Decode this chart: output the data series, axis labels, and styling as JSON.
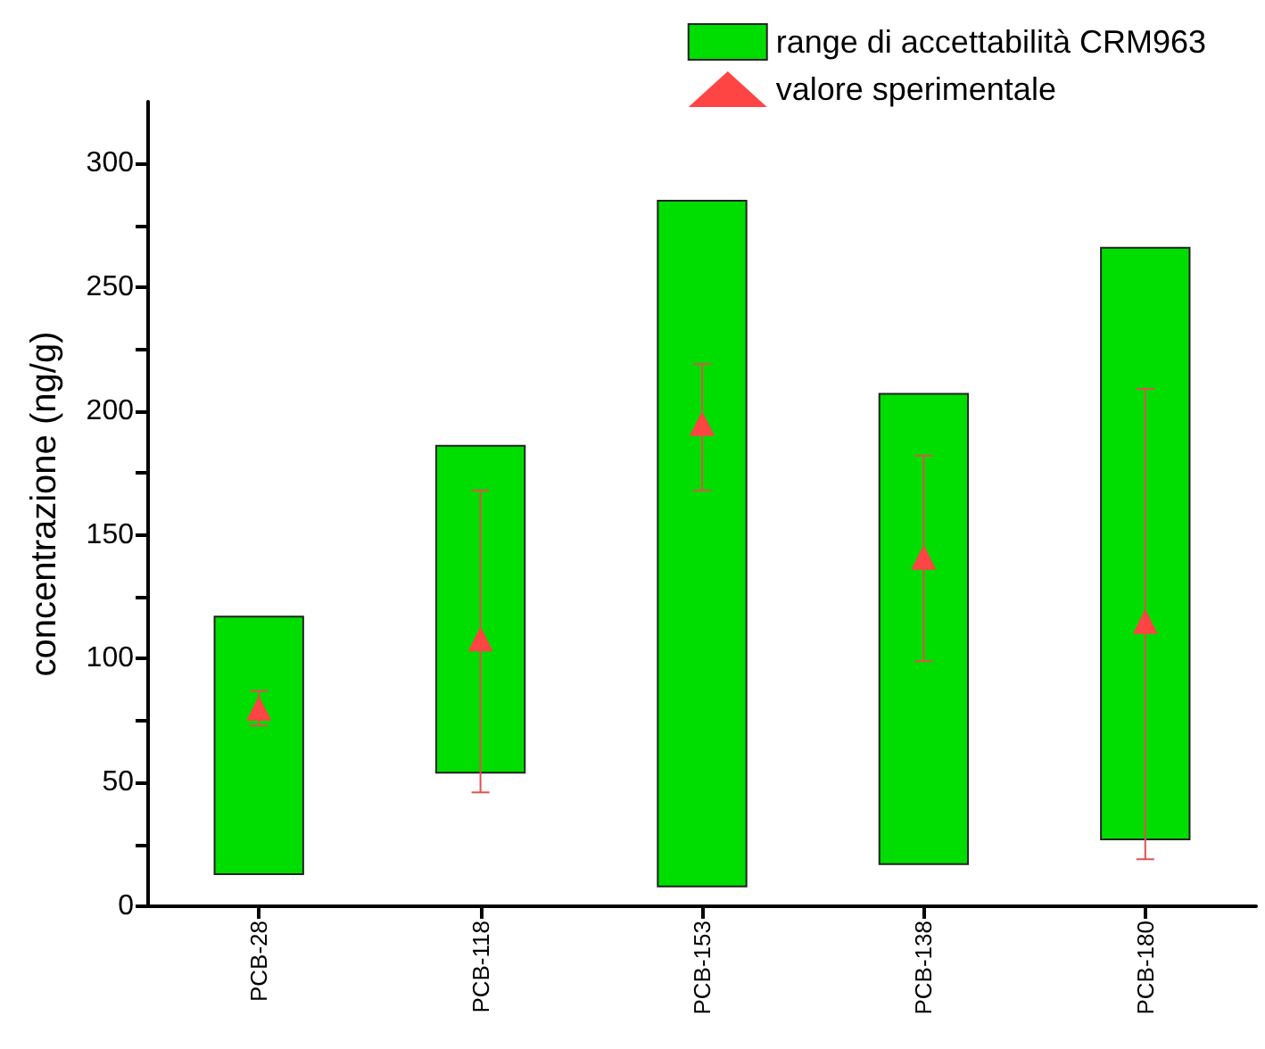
{
  "chart_data": {
    "type": "bar",
    "ylabel": "concentrazione (ng/g)",
    "categories": [
      "PCB-28",
      "PCB-118",
      "PCB-153",
      "PCB-138",
      "PCB-180"
    ],
    "series": [
      {
        "name": "range di accettabilità CRM963",
        "color": "#00dd00",
        "base": [
          13,
          54,
          8,
          17,
          27
        ],
        "values": [
          104,
          132,
          277,
          190,
          239
        ]
      },
      {
        "name": "valore sperimentale",
        "type": "scatter",
        "color": "#ff4444",
        "marker": "triangle",
        "x": [
          "PCB-28",
          "PCB-118",
          "PCB-153",
          "PCB-138",
          "PCB-180"
        ],
        "values": [
          80,
          108,
          195,
          141,
          115
        ],
        "errors": [
          [
            73,
            87
          ],
          [
            46,
            168
          ],
          [
            168,
            219
          ],
          [
            99,
            182
          ],
          [
            19,
            209
          ]
        ]
      }
    ],
    "ylim": [
      0,
      325
    ],
    "yticks": [
      0,
      {
        "value": 25,
        "label": null
      },
      50,
      {
        "value": 75,
        "label": null
      },
      100,
      {
        "value": 125,
        "label": null
      },
      150,
      {
        "value": 175,
        "label": null
      },
      200,
      {
        "value": 225,
        "label": null
      },
      250,
      {
        "value": 275,
        "label": null
      },
      300
    ],
    "grid": false,
    "legend": "top right"
  }
}
